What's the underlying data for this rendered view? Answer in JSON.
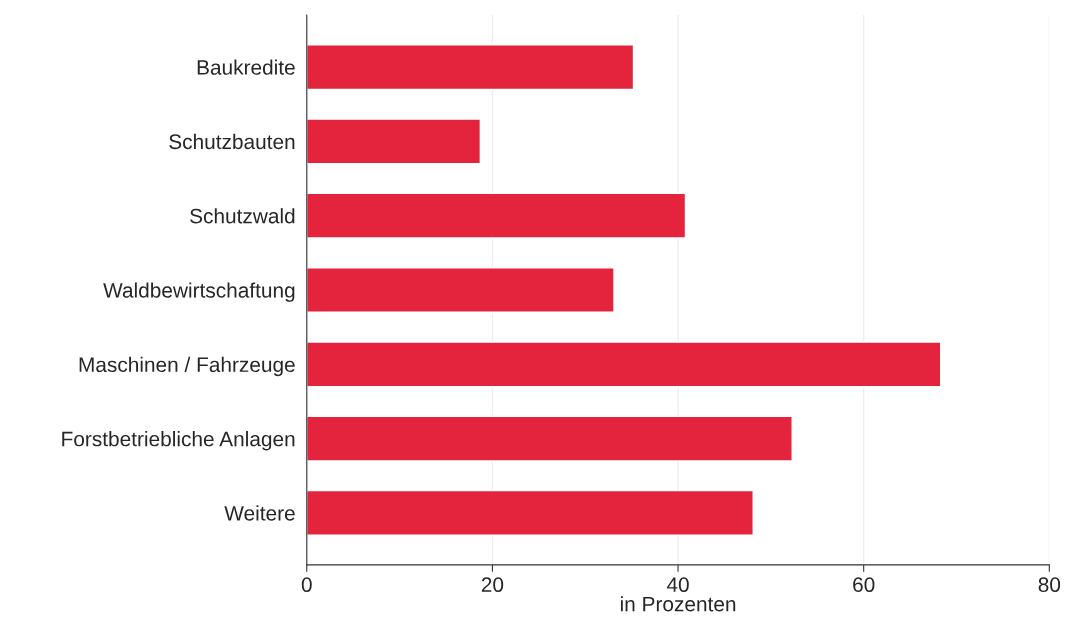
{
  "chart_data": {
    "type": "bar",
    "orientation": "horizontal",
    "xlabel": "in Prozenten",
    "categories": [
      "Baukredite",
      "Schutzbauten",
      "Schutzwald",
      "Waldbewirtschaftung",
      "Maschinen / Fahrzeuge",
      "Forstbetriebliche Anlagen",
      "Weitere"
    ],
    "values": [
      35.2,
      18.7,
      40.8,
      33.1,
      68.3,
      52.3,
      48.1
    ],
    "color": "#e3243c",
    "xlim": [
      0,
      80
    ],
    "xticks": [
      0,
      20,
      40,
      60,
      80
    ],
    "grid": "x",
    "legend": false
  }
}
